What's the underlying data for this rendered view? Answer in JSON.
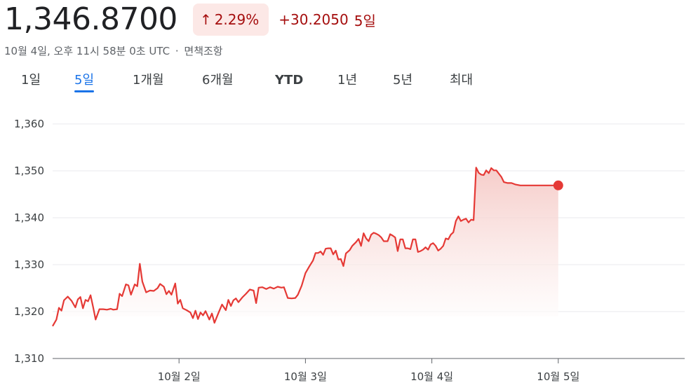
{
  "header": {
    "price": "1,346.8700",
    "percent_change": "2.29%",
    "arrow": "↑",
    "abs_change": "+30.2050",
    "period_label": "5일",
    "timestamp": "10월 4일, 오후 11시 58분 0초 UTC",
    "separator": "·",
    "disclaimer": "면책조항"
  },
  "tabs": [
    {
      "label": "1일",
      "active": false
    },
    {
      "label": "5일",
      "active": true
    },
    {
      "label": "1개월",
      "active": false
    },
    {
      "label": "6개월",
      "active": false
    },
    {
      "label": "YTD",
      "active": false
    },
    {
      "label": "1년",
      "active": false
    },
    {
      "label": "5년",
      "active": false
    },
    {
      "label": "최대",
      "active": false
    }
  ],
  "colors": {
    "line": "#e53935",
    "fill_top": "#f4c4c0",
    "grid": "#e8eaed",
    "axis": "#5f6368"
  },
  "chart_data": {
    "type": "area",
    "ylim": [
      1310,
      1360
    ],
    "yticks": [
      "1,310",
      "1,320",
      "1,330",
      "1,340",
      "1,350",
      "1,360"
    ],
    "ytick_values": [
      1310,
      1320,
      1330,
      1340,
      1350,
      1360
    ],
    "xlim": [
      0,
      5
    ],
    "xticks": [
      {
        "label": "10월 2일",
        "day": 1
      },
      {
        "label": "10월 3일",
        "day": 2
      },
      {
        "label": "10월 4일",
        "day": 3
      },
      {
        "label": "10월 5일",
        "day": 4
      }
    ],
    "grid": true,
    "series": [
      {
        "values": [
          [
            0.0,
            1316.9
          ],
          [
            0.03,
            1318.3
          ],
          [
            0.05,
            1320.8
          ],
          [
            0.07,
            1320.2
          ],
          [
            0.09,
            1322.4
          ],
          [
            0.12,
            1323.2
          ],
          [
            0.15,
            1322.3
          ],
          [
            0.18,
            1320.9
          ],
          [
            0.2,
            1322.6
          ],
          [
            0.22,
            1323.1
          ],
          [
            0.24,
            1320.7
          ],
          [
            0.26,
            1322.5
          ],
          [
            0.28,
            1322.2
          ],
          [
            0.3,
            1323.5
          ],
          [
            0.32,
            1321.0
          ],
          [
            0.34,
            1318.3
          ],
          [
            0.37,
            1320.5
          ],
          [
            0.4,
            1320.5
          ],
          [
            0.43,
            1320.4
          ],
          [
            0.46,
            1320.6
          ],
          [
            0.48,
            1320.4
          ],
          [
            0.51,
            1320.5
          ],
          [
            0.53,
            1323.8
          ],
          [
            0.55,
            1323.3
          ],
          [
            0.58,
            1325.8
          ],
          [
            0.6,
            1325.6
          ],
          [
            0.62,
            1323.6
          ],
          [
            0.65,
            1325.8
          ],
          [
            0.67,
            1325.4
          ],
          [
            0.69,
            1330.2
          ],
          [
            0.71,
            1326.4
          ],
          [
            0.74,
            1324.1
          ],
          [
            0.77,
            1324.5
          ],
          [
            0.8,
            1324.4
          ],
          [
            0.83,
            1325.0
          ],
          [
            0.85,
            1325.9
          ],
          [
            0.88,
            1325.3
          ],
          [
            0.9,
            1323.7
          ],
          [
            0.92,
            1324.4
          ],
          [
            0.94,
            1323.6
          ],
          [
            0.97,
            1326.0
          ],
          [
            0.99,
            1321.7
          ],
          [
            1.01,
            1322.5
          ],
          [
            1.03,
            1320.7
          ],
          [
            1.06,
            1320.3
          ],
          [
            1.09,
            1319.8
          ],
          [
            1.11,
            1318.6
          ],
          [
            1.13,
            1320.2
          ],
          [
            1.15,
            1318.4
          ],
          [
            1.17,
            1319.8
          ],
          [
            1.19,
            1319.2
          ],
          [
            1.21,
            1320.1
          ],
          [
            1.24,
            1318.3
          ],
          [
            1.26,
            1319.6
          ],
          [
            1.28,
            1317.6
          ],
          [
            1.31,
            1319.6
          ],
          [
            1.34,
            1321.5
          ],
          [
            1.37,
            1320.3
          ],
          [
            1.39,
            1322.5
          ],
          [
            1.41,
            1321.2
          ],
          [
            1.43,
            1322.4
          ],
          [
            1.45,
            1322.8
          ],
          [
            1.47,
            1322.0
          ],
          [
            1.5,
            1323.0
          ],
          [
            1.53,
            1323.8
          ],
          [
            1.56,
            1324.7
          ],
          [
            1.59,
            1324.5
          ],
          [
            1.61,
            1321.8
          ],
          [
            1.63,
            1325.1
          ],
          [
            1.66,
            1325.2
          ],
          [
            1.69,
            1324.8
          ],
          [
            1.72,
            1325.2
          ],
          [
            1.75,
            1324.9
          ],
          [
            1.78,
            1325.3
          ],
          [
            1.81,
            1325.1
          ],
          [
            1.83,
            1325.2
          ],
          [
            1.86,
            1322.9
          ],
          [
            1.89,
            1322.8
          ],
          [
            1.92,
            1322.9
          ],
          [
            1.94,
            1323.6
          ],
          [
            1.97,
            1325.5
          ],
          [
            2.0,
            1328.2
          ],
          [
            2.03,
            1329.6
          ],
          [
            2.06,
            1330.9
          ],
          [
            2.08,
            1332.5
          ],
          [
            2.1,
            1332.5
          ],
          [
            2.12,
            1332.8
          ],
          [
            2.14,
            1332.1
          ],
          [
            2.16,
            1333.4
          ],
          [
            2.18,
            1333.5
          ],
          [
            2.2,
            1333.5
          ],
          [
            2.22,
            1332.2
          ],
          [
            2.24,
            1333.0
          ],
          [
            2.26,
            1331.1
          ],
          [
            2.28,
            1331.2
          ],
          [
            2.3,
            1329.7
          ],
          [
            2.32,
            1332.4
          ],
          [
            2.35,
            1333.1
          ],
          [
            2.37,
            1334.0
          ],
          [
            2.4,
            1334.8
          ],
          [
            2.42,
            1335.5
          ],
          [
            2.44,
            1334.0
          ],
          [
            2.46,
            1336.7
          ],
          [
            2.48,
            1335.6
          ],
          [
            2.5,
            1335.0
          ],
          [
            2.52,
            1336.4
          ],
          [
            2.54,
            1336.8
          ],
          [
            2.56,
            1336.6
          ],
          [
            2.58,
            1336.3
          ],
          [
            2.6,
            1335.8
          ],
          [
            2.62,
            1335.0
          ],
          [
            2.65,
            1335.0
          ],
          [
            2.67,
            1336.5
          ],
          [
            2.69,
            1336.2
          ],
          [
            2.71,
            1335.8
          ],
          [
            2.73,
            1332.9
          ],
          [
            2.75,
            1335.4
          ],
          [
            2.77,
            1335.4
          ],
          [
            2.79,
            1333.5
          ],
          [
            2.81,
            1333.5
          ],
          [
            2.83,
            1333.3
          ],
          [
            2.85,
            1335.4
          ],
          [
            2.87,
            1335.4
          ],
          [
            2.89,
            1332.7
          ],
          [
            2.91,
            1332.9
          ],
          [
            2.93,
            1333.2
          ],
          [
            2.95,
            1333.7
          ],
          [
            2.97,
            1333.2
          ],
          [
            2.99,
            1334.3
          ],
          [
            3.01,
            1334.6
          ],
          [
            3.03,
            1334.0
          ],
          [
            3.05,
            1333.0
          ],
          [
            3.07,
            1333.4
          ],
          [
            3.09,
            1334.0
          ],
          [
            3.11,
            1335.6
          ],
          [
            3.13,
            1335.4
          ],
          [
            3.15,
            1336.4
          ],
          [
            3.17,
            1336.9
          ],
          [
            3.19,
            1339.3
          ],
          [
            3.21,
            1340.3
          ],
          [
            3.23,
            1339.3
          ],
          [
            3.25,
            1339.6
          ],
          [
            3.27,
            1339.8
          ],
          [
            3.29,
            1339.0
          ],
          [
            3.31,
            1339.6
          ],
          [
            3.33,
            1339.5
          ],
          [
            3.35,
            1350.7
          ],
          [
            3.37,
            1349.6
          ],
          [
            3.39,
            1349.2
          ],
          [
            3.41,
            1349.1
          ],
          [
            3.43,
            1350.1
          ],
          [
            3.45,
            1349.5
          ],
          [
            3.47,
            1350.6
          ],
          [
            3.49,
            1350.1
          ],
          [
            3.51,
            1350.1
          ],
          [
            3.53,
            1349.4
          ],
          [
            3.55,
            1348.7
          ],
          [
            3.57,
            1347.6
          ],
          [
            3.6,
            1347.4
          ],
          [
            3.63,
            1347.4
          ],
          [
            3.66,
            1347.1
          ],
          [
            3.7,
            1346.9
          ],
          [
            3.75,
            1346.9
          ],
          [
            3.8,
            1346.9
          ],
          [
            3.85,
            1346.9
          ],
          [
            3.9,
            1346.9
          ],
          [
            4.0,
            1346.9
          ]
        ]
      }
    ],
    "last_point_marker": true
  }
}
